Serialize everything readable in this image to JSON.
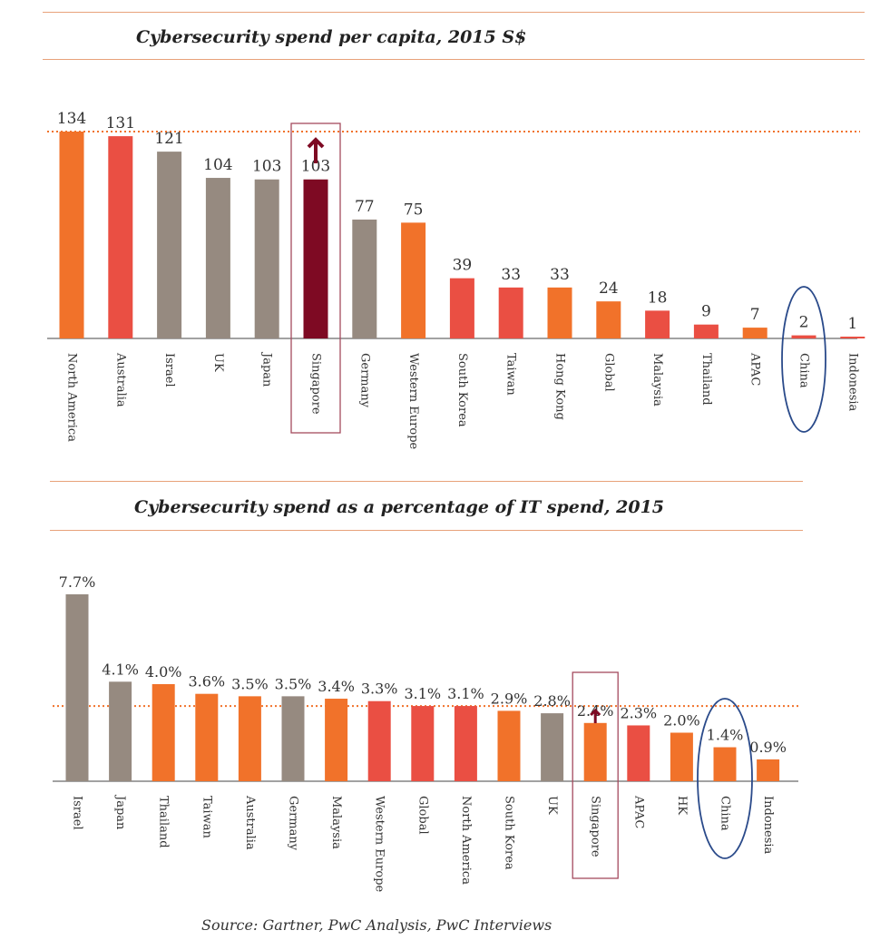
{
  "colors": {
    "orange": "#f1722a",
    "red": "#ea4f43",
    "grey": "#968a80",
    "maroon": "#7e0a23",
    "rule": "#e8a27a",
    "highlight_box": "#a44a5e",
    "circle": "#2a4a8a"
  },
  "source": "Source: Gartner, PwC Analysis, PwC Interviews",
  "chart_data": [
    {
      "type": "bar",
      "title": "Cybersecurity spend per capita, 2015 S$",
      "xlabel": "",
      "ylabel": "",
      "ylim": [
        0,
        134
      ],
      "reference_line": 134,
      "highlight_box": "Singapore",
      "highlight_circle": "China",
      "arrow_on": "Singapore",
      "categories": [
        "North America",
        "Australia",
        "Israel",
        "UK",
        "Japan",
        "Singapore",
        "Germany",
        "Western Europe",
        "South Korea",
        "Taiwan",
        "Hong Kong",
        "Global",
        "Malaysia",
        "Thailand",
        "APAC",
        "China",
        "Indonesia"
      ],
      "values": [
        134,
        131,
        121,
        104,
        103,
        103,
        77,
        75,
        39,
        33,
        33,
        24,
        18,
        9,
        7,
        2,
        1
      ],
      "labels": [
        "134",
        "131",
        "121",
        "104",
        "103",
        "103",
        "77",
        "75",
        "39",
        "33",
        "33",
        "24",
        "18",
        "9",
        "7",
        "2",
        "1"
      ],
      "bar_colors": [
        "orange",
        "red",
        "grey",
        "grey",
        "grey",
        "maroon",
        "grey",
        "orange",
        "red",
        "red",
        "orange",
        "orange",
        "red",
        "red",
        "orange",
        "red",
        "red"
      ]
    },
    {
      "type": "bar",
      "title": "Cybersecurity spend as a percentage of IT spend, 2015",
      "xlabel": "",
      "ylabel": "",
      "ylim": [
        0,
        7.7
      ],
      "reference_line": 3.1,
      "highlight_box": "Singapore",
      "highlight_circle": "China",
      "arrow_on": "Singapore",
      "categories": [
        "Israel",
        "Japan",
        "Thailand",
        "Taiwan",
        "Australia",
        "Germany",
        "Malaysia",
        "Western Europe",
        "Global",
        "North America",
        "South Korea",
        "UK",
        "Singapore",
        "APAC",
        "HK",
        "China",
        "Indonesia"
      ],
      "values": [
        7.7,
        4.1,
        4.0,
        3.6,
        3.5,
        3.5,
        3.4,
        3.3,
        3.1,
        3.1,
        2.9,
        2.8,
        2.4,
        2.3,
        2.0,
        1.4,
        0.9
      ],
      "labels": [
        "7.7%",
        "4.1%",
        "4.0%",
        "3.6%",
        "3.5%",
        "3.5%",
        "3.4%",
        "3.3%",
        "3.1%",
        "3.1%",
        "2.9%",
        "2.8%",
        "2.4%",
        "2.3%",
        "2.0%",
        "1.4%",
        "0.9%"
      ],
      "bar_colors": [
        "grey",
        "grey",
        "orange",
        "orange",
        "orange",
        "grey",
        "orange",
        "red",
        "red",
        "red",
        "orange",
        "grey",
        "orange",
        "red",
        "orange",
        "orange",
        "orange"
      ]
    }
  ]
}
